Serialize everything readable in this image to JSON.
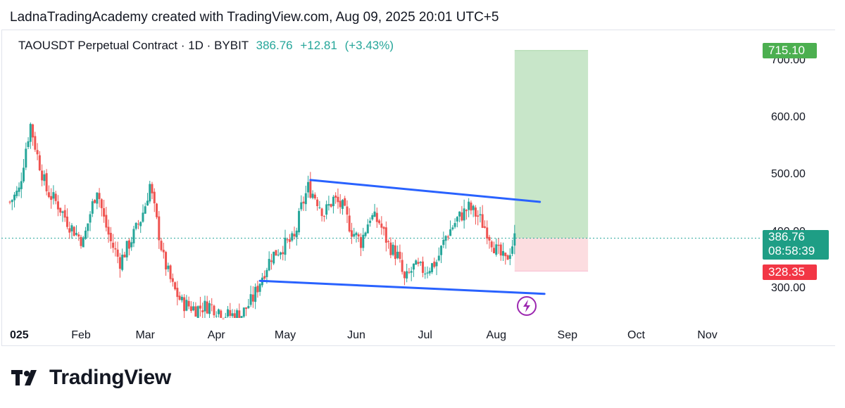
{
  "header": {
    "text": "LadnaTradingAcademy created with TradingView.com, Aug 09, 2025 20:01 UTC+5"
  },
  "legend": {
    "symbol": "TAOUSDT Perpetual Contract · 1D · BYBIT",
    "price": "386.76",
    "change": "+12.81",
    "change_pct": "(+3.43%)"
  },
  "price_tags": {
    "target": "715.10",
    "current": "386.76",
    "countdown": "08:58:39",
    "stop": "328.35"
  },
  "colors": {
    "up": "#26a69a",
    "down": "#ef5350",
    "trendline": "#2962ff",
    "profit_zone": "#c8e6c9",
    "loss_zone": "#fcdde0",
    "target_tag": "#4caf50",
    "stop_tag": "#f23645",
    "current_tag": "#1e9e85",
    "lightning": "#9c27b0"
  },
  "brand": {
    "name": "TradingView"
  },
  "chart_data": {
    "type": "candlestick",
    "title": "TAOUSDT Perpetual Contract · 1D · BYBIT",
    "x_tick_labels": [
      "025",
      "Feb",
      "Mar",
      "Apr",
      "May",
      "Jun",
      "Jul",
      "Aug",
      "Sep",
      "Oct",
      "Nov"
    ],
    "y_tick_labels": [
      "300.00",
      "400.00",
      "500.00",
      "600.00",
      "700.00"
    ],
    "y_ticks": [
      300,
      400,
      500,
      600,
      700
    ],
    "ylim": [
      235,
      740
    ],
    "x_range": [
      "2025-01-01",
      "2025-11-30"
    ],
    "current_price": 386.76,
    "target_price": 715.1,
    "stop_price": 328.35,
    "close_path": [
      [
        "2025-01-01",
        450
      ],
      [
        "2025-01-05",
        470
      ],
      [
        "2025-01-08",
        545
      ],
      [
        "2025-01-10",
        585
      ],
      [
        "2025-01-13",
        530
      ],
      [
        "2025-01-17",
        470
      ],
      [
        "2025-01-22",
        445
      ],
      [
        "2025-01-27",
        410
      ],
      [
        "2025-02-02",
        380
      ],
      [
        "2025-02-05",
        430
      ],
      [
        "2025-02-08",
        475
      ],
      [
        "2025-02-11",
        420
      ],
      [
        "2025-02-14",
        380
      ],
      [
        "2025-02-18",
        345
      ],
      [
        "2025-02-23",
        385
      ],
      [
        "2025-02-27",
        420
      ],
      [
        "2025-03-01",
        445
      ],
      [
        "2025-03-03",
        480
      ],
      [
        "2025-03-06",
        415
      ],
      [
        "2025-03-09",
        350
      ],
      [
        "2025-03-13",
        300
      ],
      [
        "2025-03-17",
        272
      ],
      [
        "2025-03-23",
        262
      ],
      [
        "2025-03-29",
        268
      ],
      [
        "2025-04-02",
        260
      ],
      [
        "2025-04-06",
        250
      ],
      [
        "2025-04-12",
        252
      ],
      [
        "2025-04-17",
        280
      ],
      [
        "2025-04-21",
        320
      ],
      [
        "2025-04-25",
        355
      ],
      [
        "2025-05-01",
        375
      ],
      [
        "2025-05-05",
        385
      ],
      [
        "2025-05-08",
        440
      ],
      [
        "2025-05-11",
        475
      ],
      [
        "2025-05-14",
        460
      ],
      [
        "2025-05-18",
        430
      ],
      [
        "2025-05-22",
        455
      ],
      [
        "2025-05-26",
        440
      ],
      [
        "2025-05-30",
        400
      ],
      [
        "2025-06-03",
        380
      ],
      [
        "2025-06-07",
        425
      ],
      [
        "2025-06-11",
        415
      ],
      [
        "2025-06-15",
        375
      ],
      [
        "2025-06-19",
        355
      ],
      [
        "2025-06-22",
        310
      ],
      [
        "2025-06-26",
        335
      ],
      [
        "2025-07-01",
        330
      ],
      [
        "2025-07-06",
        345
      ],
      [
        "2025-07-10",
        390
      ],
      [
        "2025-07-15",
        420
      ],
      [
        "2025-07-20",
        440
      ],
      [
        "2025-07-24",
        425
      ],
      [
        "2025-07-28",
        400
      ],
      [
        "2025-08-01",
        365
      ],
      [
        "2025-08-05",
        345
      ],
      [
        "2025-08-09",
        386.76
      ]
    ],
    "trendlines": [
      {
        "from": [
          "2025-05-12",
          488
        ],
        "to": [
          "2025-08-20",
          450
        ]
      },
      {
        "from": [
          "2025-04-20",
          311
        ],
        "to": [
          "2025-08-22",
          288
        ]
      }
    ],
    "position": {
      "type": "long",
      "start": "2025-08-09",
      "end": "2025-09-10",
      "entry": 386.76,
      "target": 715.1,
      "stop": 328.35
    }
  }
}
